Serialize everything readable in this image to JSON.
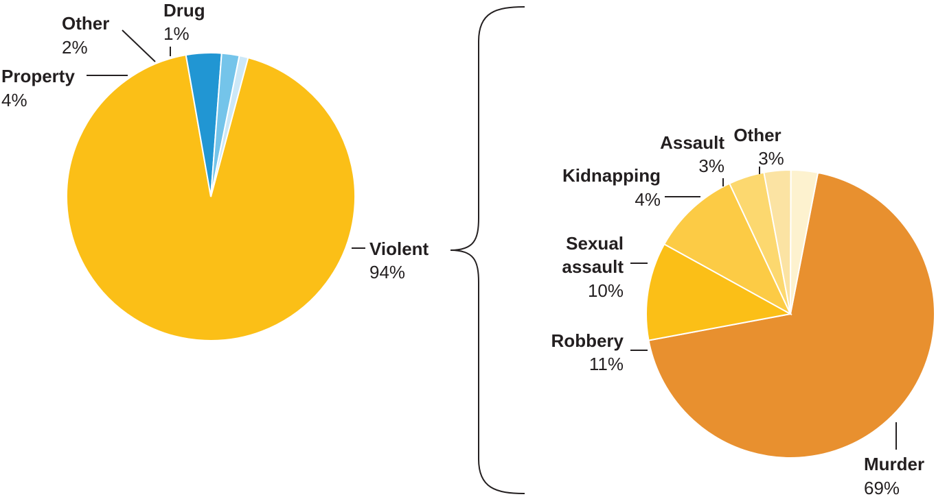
{
  "chart_data": [
    {
      "type": "pie",
      "title": "",
      "slices": [
        {
          "label": "Violent",
          "value": 94,
          "display": "94%",
          "color": "#fbbf17"
        },
        {
          "label": "Property",
          "value": 4,
          "display": "4%",
          "color": "#2196d3"
        },
        {
          "label": "Other",
          "value": 2,
          "display": "2%",
          "color": "#74c4ea"
        },
        {
          "label": "Drug",
          "value": 1,
          "display": "1%",
          "color": "#cde8f7"
        }
      ]
    },
    {
      "type": "pie",
      "title": "",
      "breakdown_of": "Violent",
      "slices": [
        {
          "label": "Murder",
          "value": 69,
          "display": "69%",
          "color": "#e8902f"
        },
        {
          "label": "Robbery",
          "value": 11,
          "display": "11%",
          "color": "#fbbf17"
        },
        {
          "label": "Sexual assault",
          "value": 10,
          "display": "10%",
          "color": "#fccb45"
        },
        {
          "label": "Kidnapping",
          "value": 4,
          "display": "4%",
          "color": "#fcd86f"
        },
        {
          "label": "Assault",
          "value": 3,
          "display": "3%",
          "color": "#fbe3a3"
        },
        {
          "label": "Other",
          "value": 3,
          "display": "3%",
          "color": "#fdf2cf"
        }
      ]
    }
  ]
}
